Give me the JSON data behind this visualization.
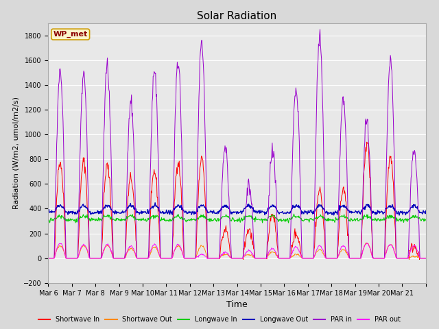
{
  "title": "Solar Radiation",
  "ylabel": "Radiation (W/m2, umol/m2/s)",
  "xlabel": "Time",
  "ylim": [
    -200,
    1900
  ],
  "yticks": [
    -200,
    0,
    200,
    400,
    600,
    800,
    1000,
    1200,
    1400,
    1600,
    1800
  ],
  "fig_bg": "#d9d9d9",
  "plot_bg": "#e8e8e8",
  "station_label": "WP_met",
  "legend_entries": [
    "Shortwave In",
    "Shortwave Out",
    "Longwave In",
    "Longwave Out",
    "PAR in",
    "PAR out"
  ],
  "legend_colors": [
    "#ff0000",
    "#ff8800",
    "#00cc00",
    "#0000bb",
    "#9900cc",
    "#ff00ff"
  ],
  "n_days": 16,
  "start_day": 6,
  "sw_in_peaks": [
    780,
    780,
    750,
    650,
    700,
    780,
    800,
    230,
    230,
    360,
    200,
    550,
    560,
    940,
    820,
    100
  ],
  "sw_out_peaks": [
    100,
    100,
    100,
    80,
    90,
    100,
    100,
    30,
    30,
    50,
    30,
    70,
    70,
    120,
    110,
    15
  ],
  "par_in_peaks": [
    1500,
    1500,
    1550,
    1250,
    1520,
    1580,
    1730,
    870,
    600,
    870,
    1370,
    1800,
    1280,
    1100,
    1600,
    890
  ],
  "par_out_peaks": [
    120,
    110,
    110,
    100,
    110,
    110,
    30,
    50,
    60,
    80,
    90,
    100,
    100,
    120,
    110,
    100
  ],
  "lw_in_base": 310,
  "lw_out_base": 370,
  "x_tick_labels": [
    "Mar 6",
    "Mar 7",
    "Mar 8",
    "Mar 9",
    "Mar 10",
    "Mar 11",
    "Mar 12",
    "Mar 13",
    "Mar 14",
    "Mar 15",
    "Mar 16",
    "Mar 17",
    "Mar 18",
    "Mar 19",
    "Mar 20",
    "Mar 21",
    ""
  ],
  "tick_fontsize": 7,
  "title_fontsize": 11,
  "ylabel_fontsize": 8,
  "xlabel_fontsize": 9
}
